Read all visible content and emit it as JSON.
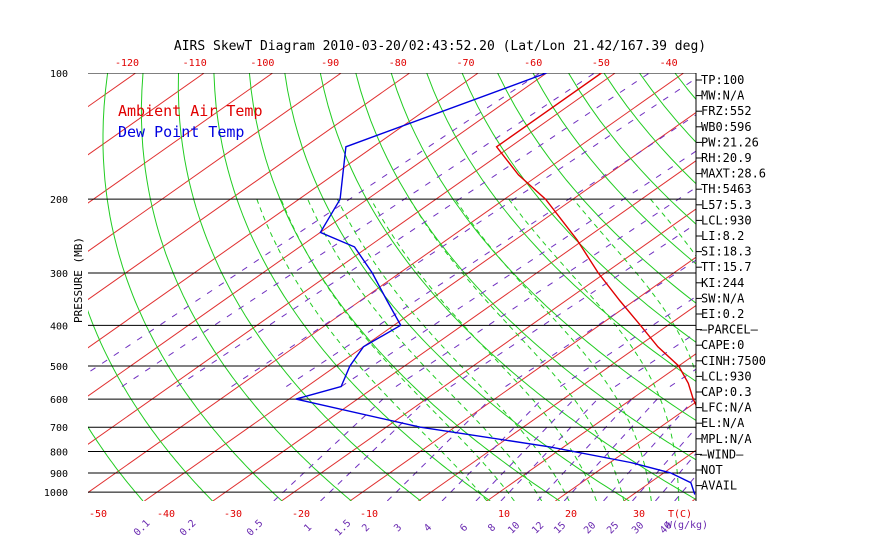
{
  "chart_data": {
    "type": "line",
    "title": "AIRS SkewT Diagram 2010-03-20/02:43:52.20 (Lat/Lon 21.42/167.39 deg)",
    "ylabel": "PRESSURE (MB)",
    "xlabel_bottom": "T(C)",
    "mixing_label": "W(g/kg)",
    "ylim": [
      1050,
      100
    ],
    "pressure_ticks": [
      {
        "p": 100,
        "label": "100"
      },
      {
        "p": 200,
        "label": "200"
      },
      {
        "p": 300,
        "label": "300"
      },
      {
        "p": 400,
        "label": "400"
      },
      {
        "p": 500,
        "label": "500"
      },
      {
        "p": 600,
        "label": "600"
      },
      {
        "p": 700,
        "label": "700"
      },
      {
        "p": 800,
        "label": "800"
      },
      {
        "p": 900,
        "label": "900"
      },
      {
        "p": 1000,
        "label": "1000"
      }
    ],
    "top_temp_ticks": [
      "-120",
      "-110",
      "-100",
      "-90",
      "-80",
      "-70",
      "-60",
      "-50",
      "-40"
    ],
    "bottom_temp_ticks": [
      "-50",
      "-40",
      "-30",
      "-20",
      "-10",
      "10",
      "20",
      "30"
    ],
    "mixing_ratio_ticks": [
      "0.1",
      "0.2",
      "0.5",
      "1",
      "1.5",
      "2",
      "3",
      "4",
      "6",
      "8",
      "10",
      "12",
      "15",
      "20",
      "25",
      "30",
      "40"
    ],
    "legend": [
      {
        "label": "Ambient Air Temp",
        "color": "#e00000"
      },
      {
        "label": "Dew Point Temp",
        "color": "#0000e0"
      }
    ],
    "series": [
      {
        "name": "Ambient Air Temp",
        "color": "#e00000",
        "points": [
          {
            "p": 100,
            "t": -82
          },
          {
            "p": 150,
            "t": -82
          },
          {
            "p": 175,
            "t": -73
          },
          {
            "p": 200,
            "t": -64
          },
          {
            "p": 250,
            "t": -51
          },
          {
            "p": 300,
            "t": -41
          },
          {
            "p": 350,
            "t": -32
          },
          {
            "p": 400,
            "t": -24
          },
          {
            "p": 450,
            "t": -17
          },
          {
            "p": 500,
            "t": -10
          },
          {
            "p": 550,
            "t": -5
          },
          {
            "p": 600,
            "t": -1
          },
          {
            "p": 650,
            "t": 3
          },
          {
            "p": 700,
            "t": 7
          },
          {
            "p": 750,
            "t": 10
          },
          {
            "p": 800,
            "t": 13
          },
          {
            "p": 850,
            "t": 17
          },
          {
            "p": 900,
            "t": 20
          },
          {
            "p": 950,
            "t": 22
          },
          {
            "p": 980,
            "t": 24
          },
          {
            "p": 1013,
            "t": 27
          }
        ]
      },
      {
        "name": "Dew Point Temp",
        "color": "#0000e0",
        "points": [
          {
            "p": 100,
            "t": -90
          },
          {
            "p": 150,
            "t": -104
          },
          {
            "p": 200,
            "t": -94
          },
          {
            "p": 240,
            "t": -90
          },
          {
            "p": 260,
            "t": -82
          },
          {
            "p": 300,
            "t": -74
          },
          {
            "p": 350,
            "t": -66
          },
          {
            "p": 400,
            "t": -59
          },
          {
            "p": 450,
            "t": -60
          },
          {
            "p": 500,
            "t": -58
          },
          {
            "p": 560,
            "t": -55
          },
          {
            "p": 600,
            "t": -59
          },
          {
            "p": 700,
            "t": -35
          },
          {
            "p": 780,
            "t": -12
          },
          {
            "p": 850,
            "t": 3
          },
          {
            "p": 900,
            "t": 11
          },
          {
            "p": 950,
            "t": 16
          },
          {
            "p": 1013,
            "t": 19
          }
        ]
      }
    ]
  },
  "indices": [
    "TP:100",
    "MW:N/A",
    "FRZ:552",
    "WB0:596",
    "PW:21.26",
    "RH:20.9",
    "MAXT:28.6",
    "TH:5463",
    "L57:5.3",
    "LCL:930",
    "LI:8.2",
    "SI:18.3",
    "TT:15.7",
    "KI:244",
    "SW:N/A",
    "EI:0.2",
    "-PARCEL-",
    "CAPE:0",
    "CINH:7500",
    "LCL:930",
    "CAP:0.3",
    "LFC:N/A",
    "EL:N/A",
    "MPL:N/A",
    "-WIND-",
    "NOT",
    "AVAIL"
  ],
  "colors": {
    "isotherm": "#e03030",
    "dry_adiabat": "#22cc22",
    "moist_adiabat": "#22cc22",
    "mixing_ratio": "#7030c0",
    "isobar": "#000000"
  }
}
